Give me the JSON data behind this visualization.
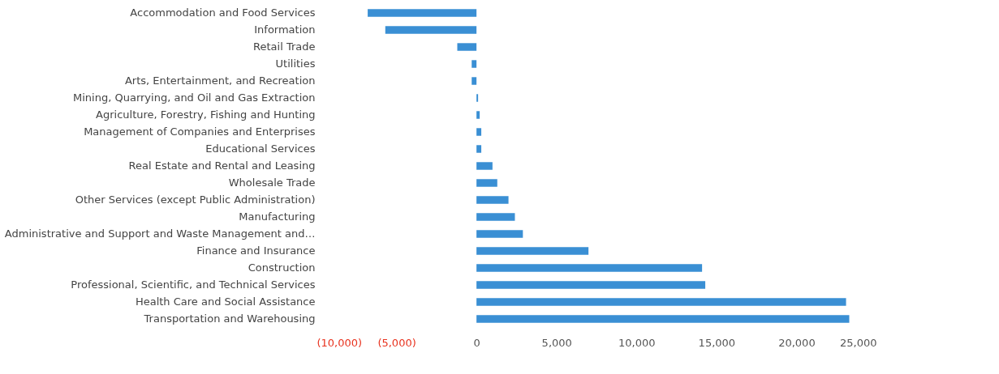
{
  "chart_data": {
    "type": "bar",
    "orientation": "horizontal",
    "categories": [
      "Accommodation and Food Services",
      "Information",
      "Retail Trade",
      "Utilities",
      "Arts, Entertainment, and Recreation",
      "Mining, Quarrying, and Oil and Gas Extraction",
      "Agriculture, Forestry, Fishing and Hunting",
      "Management of Companies and Enterprises",
      "Educational Services",
      "Real Estate and Rental and Leasing",
      "Wholesale Trade",
      "Other Services (except Public Administration)",
      "Manufacturing",
      "Administrative and Support and Waste Management and…",
      "Finance and Insurance",
      "Construction",
      "Professional, Scientific, and Technical Services",
      "Health Care and Social Assistance",
      "Transportation and Warehousing"
    ],
    "values": [
      -6800,
      -5700,
      -1200,
      -300,
      -300,
      100,
      200,
      300,
      300,
      1000,
      1300,
      2000,
      2400,
      2900,
      7000,
      14100,
      14300,
      23100,
      23300
    ],
    "color": "#3a8fd4",
    "xlim": [
      -10000,
      25000
    ],
    "xticks": [
      {
        "value": -10000,
        "label": "(10,000)"
      },
      {
        "value": -5000,
        "label": "(5,000)"
      },
      {
        "value": 0,
        "label": "0"
      },
      {
        "value": 5000,
        "label": "5,000"
      },
      {
        "value": 10000,
        "label": "10,000"
      },
      {
        "value": 15000,
        "label": "15,000"
      },
      {
        "value": 20000,
        "label": "20,000"
      },
      {
        "value": 25000,
        "label": "25,000"
      }
    ],
    "grid": false
  }
}
